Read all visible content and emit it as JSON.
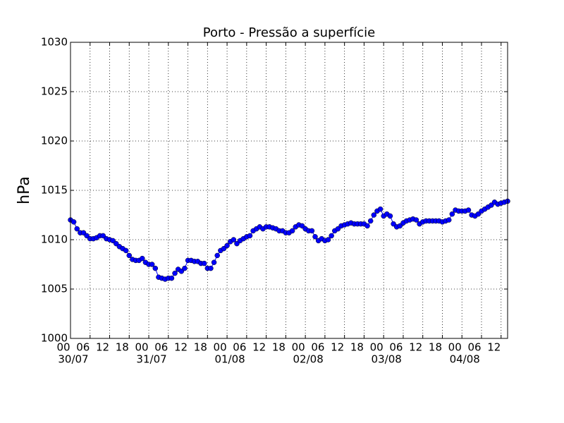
{
  "chart_data": {
    "type": "line",
    "title": "Porto - Pressão a superfície",
    "y_label": "hPa",
    "x": [
      0,
      1,
      2,
      3,
      4,
      5,
      6,
      7,
      8,
      9,
      10,
      11,
      12,
      13,
      14,
      15,
      16,
      17,
      18,
      19,
      20,
      21,
      22,
      23,
      24,
      25,
      26,
      27,
      28,
      29,
      30,
      31,
      32,
      33,
      34,
      35,
      36,
      37,
      38,
      39,
      40,
      41,
      42,
      43,
      44,
      45,
      46,
      47,
      48,
      49,
      50,
      51,
      52,
      53,
      54,
      55,
      56,
      57,
      58,
      59,
      60,
      61,
      62,
      63,
      64,
      65,
      66,
      67,
      68,
      69,
      70,
      71,
      72,
      73,
      74,
      75,
      76,
      77,
      78,
      79,
      80,
      81,
      82,
      83,
      84,
      85,
      86,
      87,
      88,
      89,
      90,
      91,
      92,
      93,
      94,
      95,
      96,
      97,
      98,
      99,
      100,
      101,
      102,
      103,
      104,
      105,
      106,
      107,
      108,
      109,
      110,
      111,
      112,
      113,
      114,
      115,
      116,
      117,
      118,
      119,
      120,
      121,
      122,
      123,
      124,
      125,
      126,
      127,
      128,
      129,
      130,
      131,
      132,
      133,
      134
    ],
    "series": [
      {
        "color": "#0000ff",
        "values": [
          1012.0,
          1011.8,
          1011.1,
          1010.7,
          1010.7,
          1010.4,
          1010.1,
          1010.1,
          1010.2,
          1010.4,
          1010.4,
          1010.1,
          1010.0,
          1009.9,
          1009.6,
          1009.3,
          1009.1,
          1008.9,
          1008.4,
          1008.0,
          1007.9,
          1007.9,
          1008.1,
          1007.7,
          1007.5,
          1007.5,
          1007.1,
          1006.2,
          1006.1,
          1006.0,
          1006.1,
          1006.1,
          1006.6,
          1007.0,
          1006.8,
          1007.1,
          1007.9,
          1007.9,
          1007.8,
          1007.8,
          1007.6,
          1007.6,
          1007.1,
          1007.1,
          1007.7,
          1008.4,
          1008.9,
          1009.1,
          1009.4,
          1009.8,
          1010.0,
          1009.6,
          1009.9,
          1010.1,
          1010.3,
          1010.4,
          1010.9,
          1011.1,
          1011.3,
          1011.1,
          1011.3,
          1011.3,
          1011.2,
          1011.1,
          1010.9,
          1010.9,
          1010.7,
          1010.7,
          1010.9,
          1011.3,
          1011.5,
          1011.4,
          1011.1,
          1010.9,
          1010.9,
          1010.3,
          1009.9,
          1010.1,
          1009.9,
          1010.0,
          1010.4,
          1010.9,
          1011.1,
          1011.4,
          1011.5,
          1011.6,
          1011.7,
          1011.6,
          1011.6,
          1011.6,
          1011.6,
          1011.4,
          1011.9,
          1012.5,
          1012.9,
          1013.1,
          1012.4,
          1012.6,
          1012.4,
          1011.6,
          1011.3,
          1011.4,
          1011.7,
          1011.9,
          1012.0,
          1012.1,
          1012.0,
          1011.6,
          1011.8,
          1011.9,
          1011.9,
          1011.9,
          1011.9,
          1011.9,
          1011.8,
          1011.9,
          1012.0,
          1012.6,
          1013.0,
          1012.9,
          1012.9,
          1012.9,
          1013.0,
          1012.5,
          1012.4,
          1012.6,
          1012.9,
          1013.1,
          1013.3,
          1013.5,
          1013.8,
          1013.6,
          1013.7,
          1013.8,
          1013.9
        ]
      }
    ],
    "xlim": [
      0,
      134
    ],
    "xticks": [
      {
        "value": 0,
        "label": "00"
      },
      {
        "value": 6,
        "label": "06"
      },
      {
        "value": 12,
        "label": "12"
      },
      {
        "value": 18,
        "label": "18"
      },
      {
        "value": 24,
        "label": "00"
      },
      {
        "value": 30,
        "label": "06"
      },
      {
        "value": 36,
        "label": "12"
      },
      {
        "value": 42,
        "label": "18"
      },
      {
        "value": 48,
        "label": "00"
      },
      {
        "value": 54,
        "label": "06"
      },
      {
        "value": 60,
        "label": "12"
      },
      {
        "value": 66,
        "label": "18"
      },
      {
        "value": 72,
        "label": "00"
      },
      {
        "value": 78,
        "label": "06"
      },
      {
        "value": 84,
        "label": "12"
      },
      {
        "value": 90,
        "label": "18"
      },
      {
        "value": 96,
        "label": "00"
      },
      {
        "value": 102,
        "label": "06"
      },
      {
        "value": 108,
        "label": "12"
      },
      {
        "value": 114,
        "label": "18"
      },
      {
        "value": 120,
        "label": "00"
      },
      {
        "value": 126,
        "label": "06"
      },
      {
        "value": 132,
        "label": "12"
      }
    ],
    "x_date_labels": [
      {
        "value": 0,
        "label": "30/07"
      },
      {
        "value": 24,
        "label": "31/07"
      },
      {
        "value": 48,
        "label": "01/08"
      },
      {
        "value": 72,
        "label": "02/08"
      },
      {
        "value": 96,
        "label": "03/08"
      },
      {
        "value": 120,
        "label": "04/08"
      }
    ],
    "ylim": [
      1000,
      1030
    ],
    "yticks": [
      1000,
      1005,
      1010,
      1015,
      1020,
      1025,
      1030
    ],
    "grid": true
  }
}
